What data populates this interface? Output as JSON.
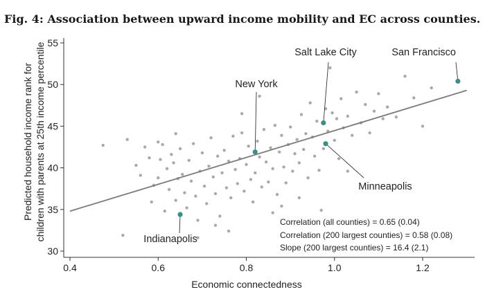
{
  "figure_title": "Fig. 4: Association between upward income mobility and EC across counties.",
  "colors": {
    "points": "#a9a9a9",
    "highlight": "#3e8e88",
    "fit_line": "#7a7a7a",
    "axis": "#333333",
    "text": "#222222"
  },
  "chart_data": {
    "type": "scatter",
    "title": "",
    "xlabel": "Economic connectedness",
    "ylabel": [
      "Predicted household income rank for",
      "children with parents at 25th income percentile"
    ],
    "xlim": [
      0.4,
      1.3
    ],
    "ylim": [
      30,
      55
    ],
    "xticks": [
      0.4,
      0.6,
      0.8,
      1.0,
      1.2
    ],
    "xtick_labels": [
      "0.4",
      "0.6",
      "0.8",
      "1.0",
      "1.2"
    ],
    "yticks": [
      30,
      35,
      40,
      45,
      50,
      55
    ],
    "ytick_labels": [
      "30",
      "35",
      "40",
      "45",
      "50",
      "55"
    ],
    "grid": false,
    "fit_line": {
      "x": [
        0.4,
        1.3
      ],
      "y": [
        34.8,
        49.3
      ]
    },
    "highlighted": [
      {
        "name": "San Francisco",
        "x": 1.28,
        "y": 50.4
      },
      {
        "name": "Salt Lake City",
        "x": 0.975,
        "y": 45.4
      },
      {
        "name": "New York",
        "x": 0.82,
        "y": 41.9
      },
      {
        "name": "Minneapolis",
        "x": 0.98,
        "y": 42.9
      },
      {
        "name": "Indianapolis",
        "x": 0.65,
        "y": 34.4
      }
    ],
    "annotations": [
      "Correlation (all counties) = 0.65 (0.04)",
      "Correlation (200 largest counties) = 0.58 (0.08)",
      "Slope (200 largest counties) = 16.4 (2.1)"
    ],
    "points": [
      [
        0.475,
        42.7
      ],
      [
        0.53,
        43.4
      ],
      [
        0.52,
        31.9
      ],
      [
        0.55,
        40.3
      ],
      [
        0.56,
        39.1
      ],
      [
        0.57,
        42.5
      ],
      [
        0.58,
        41.2
      ],
      [
        0.585,
        35.9
      ],
      [
        0.59,
        37.9
      ],
      [
        0.6,
        38.8
      ],
      [
        0.605,
        41.0
      ],
      [
        0.61,
        42.8
      ],
      [
        0.615,
        34.8
      ],
      [
        0.62,
        39.9
      ],
      [
        0.625,
        37.4
      ],
      [
        0.63,
        41.6
      ],
      [
        0.635,
        40.6
      ],
      [
        0.64,
        36.1
      ],
      [
        0.645,
        38.7
      ],
      [
        0.65,
        42.3
      ],
      [
        0.655,
        39.2
      ],
      [
        0.66,
        37.0
      ],
      [
        0.665,
        35.2
      ],
      [
        0.67,
        40.9
      ],
      [
        0.675,
        38.4
      ],
      [
        0.68,
        42.9
      ],
      [
        0.685,
        36.6
      ],
      [
        0.69,
        33.7
      ],
      [
        0.695,
        39.6
      ],
      [
        0.7,
        41.8
      ],
      [
        0.705,
        37.8
      ],
      [
        0.71,
        35.7
      ],
      [
        0.715,
        40.2
      ],
      [
        0.72,
        43.6
      ],
      [
        0.725,
        38.9
      ],
      [
        0.73,
        36.9
      ],
      [
        0.735,
        41.4
      ],
      [
        0.74,
        34.2
      ],
      [
        0.745,
        39.4
      ],
      [
        0.75,
        42.1
      ],
      [
        0.755,
        37.6
      ],
      [
        0.76,
        40.8
      ],
      [
        0.765,
        36.4
      ],
      [
        0.77,
        43.8
      ],
      [
        0.775,
        39.8
      ],
      [
        0.78,
        38.1
      ],
      [
        0.785,
        41.1
      ],
      [
        0.79,
        44.2
      ],
      [
        0.795,
        37.2
      ],
      [
        0.8,
        40.4
      ],
      [
        0.805,
        42.6
      ],
      [
        0.81,
        38.6
      ],
      [
        0.815,
        35.9
      ],
      [
        0.82,
        39.4
      ],
      [
        0.825,
        43.2
      ],
      [
        0.83,
        41.3
      ],
      [
        0.835,
        37.7
      ],
      [
        0.84,
        44.6
      ],
      [
        0.845,
        40.7
      ],
      [
        0.85,
        38.3
      ],
      [
        0.855,
        42.4
      ],
      [
        0.86,
        39.9
      ],
      [
        0.865,
        45.1
      ],
      [
        0.87,
        36.8
      ],
      [
        0.875,
        41.9
      ],
      [
        0.88,
        43.9
      ],
      [
        0.885,
        40.1
      ],
      [
        0.89,
        38.2
      ],
      [
        0.895,
        42.8
      ],
      [
        0.9,
        44.9
      ],
      [
        0.905,
        39.6
      ],
      [
        0.91,
        41.7
      ],
      [
        0.915,
        43.4
      ],
      [
        0.92,
        40.6
      ],
      [
        0.925,
        46.4
      ],
      [
        0.93,
        42.2
      ],
      [
        0.935,
        44.1
      ],
      [
        0.94,
        38.8
      ],
      [
        0.945,
        47.8
      ],
      [
        0.95,
        43.7
      ],
      [
        0.955,
        41.4
      ],
      [
        0.96,
        45.6
      ],
      [
        0.965,
        39.7
      ],
      [
        0.97,
        34.9
      ],
      [
        0.975,
        42.3
      ],
      [
        0.98,
        47.1
      ],
      [
        0.985,
        44.4
      ],
      [
        0.99,
        52.0
      ],
      [
        0.995,
        46.6
      ],
      [
        1.0,
        43.3
      ],
      [
        1.005,
        45.9
      ],
      [
        1.01,
        41.1
      ],
      [
        1.015,
        48.3
      ],
      [
        1.02,
        44.8
      ],
      [
        1.03,
        46.2
      ],
      [
        1.04,
        43.9
      ],
      [
        1.05,
        49.1
      ],
      [
        1.06,
        45.4
      ],
      [
        1.07,
        47.6
      ],
      [
        1.08,
        44.2
      ],
      [
        1.09,
        46.8
      ],
      [
        1.1,
        48.9
      ],
      [
        1.11,
        45.9
      ],
      [
        1.12,
        47.3
      ],
      [
        1.14,
        46.1
      ],
      [
        1.16,
        51.0
      ],
      [
        1.18,
        48.4
      ],
      [
        1.2,
        45.0
      ],
      [
        1.22,
        49.6
      ],
      [
        0.69,
        31.6
      ],
      [
        0.73,
        33.1
      ],
      [
        0.76,
        32.4
      ],
      [
        0.6,
        43.1
      ],
      [
        0.64,
        44.1
      ],
      [
        0.86,
        34.6
      ],
      [
        0.92,
        36.4
      ],
      [
        1.03,
        39.6
      ],
      [
        0.79,
        46.5
      ],
      [
        0.88,
        35.4
      ],
      [
        0.83,
        48.6
      ]
    ]
  }
}
